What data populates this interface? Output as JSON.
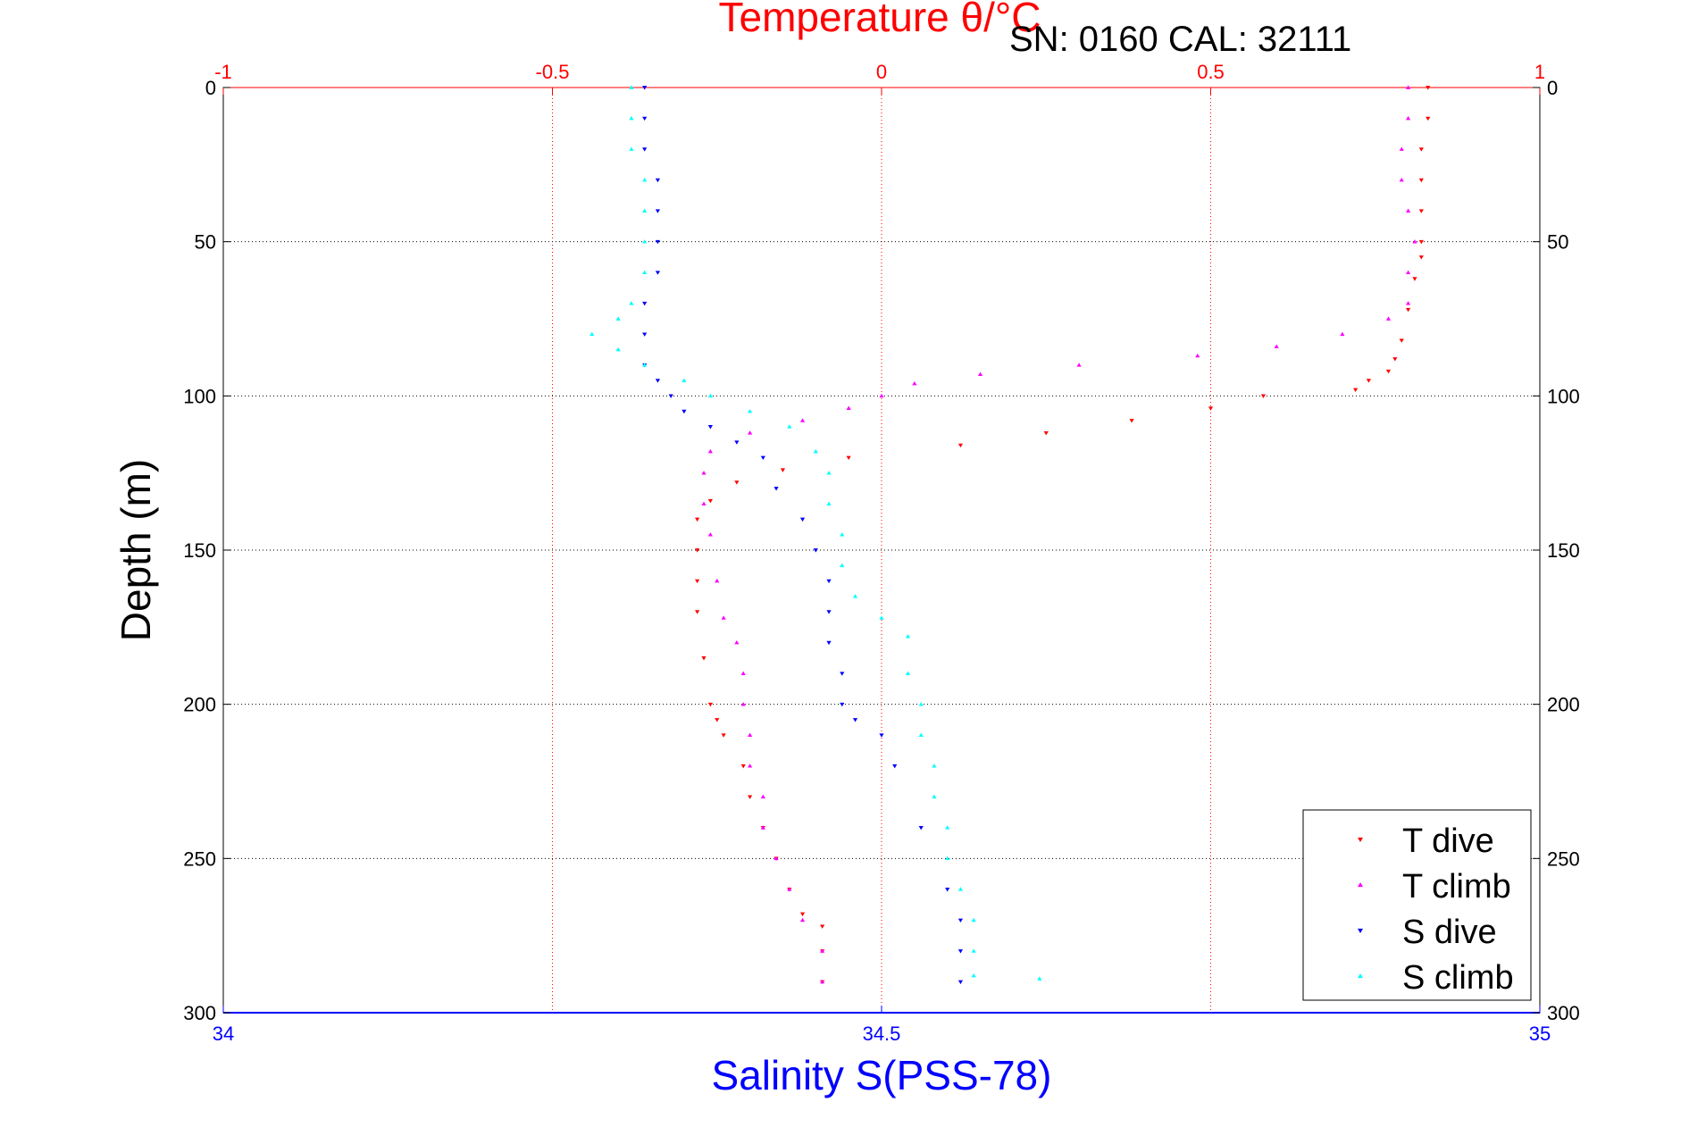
{
  "chart_data": {
    "type": "scatter",
    "info_label": "SN: 0160  CAL: 32111",
    "top_axis": {
      "label": "Temperature θ/°C",
      "range": [
        -1,
        1
      ],
      "ticks": [
        -1,
        -0.5,
        0,
        0.5,
        1
      ],
      "tick_labels": [
        "-1",
        "-0.5",
        "0",
        "0.5",
        "1"
      ],
      "color": "#ff0000"
    },
    "bottom_axis": {
      "label": "Salinity S(PSS-78)",
      "range": [
        34,
        35
      ],
      "ticks": [
        34,
        34.5,
        35
      ],
      "tick_labels": [
        "34",
        "34.5",
        "35"
      ],
      "color": "#0000ff"
    },
    "y_axis": {
      "label": "Depth (m)",
      "range": [
        0,
        300
      ],
      "reversed": true,
      "ticks": [
        0,
        50,
        100,
        150,
        200,
        250,
        300
      ],
      "tick_labels": [
        "0",
        "50",
        "100",
        "150",
        "200",
        "250",
        "300"
      ]
    },
    "grid": true,
    "legend": {
      "position": "bottom-right"
    },
    "series": [
      {
        "name": "T dive",
        "axis": "temperature",
        "marker": "triangle-down",
        "color": "#ff0000",
        "points": [
          [
            0.83,
            0
          ],
          [
            0.83,
            10
          ],
          [
            0.82,
            20
          ],
          [
            0.82,
            30
          ],
          [
            0.82,
            40
          ],
          [
            0.82,
            50
          ],
          [
            0.82,
            55
          ],
          [
            0.81,
            62
          ],
          [
            0.8,
            72
          ],
          [
            0.79,
            82
          ],
          [
            0.78,
            88
          ],
          [
            0.77,
            92
          ],
          [
            0.74,
            95
          ],
          [
            0.72,
            98
          ],
          [
            0.58,
            100
          ],
          [
            0.5,
            104
          ],
          [
            0.38,
            108
          ],
          [
            0.25,
            112
          ],
          [
            0.12,
            116
          ],
          [
            -0.05,
            120
          ],
          [
            -0.15,
            124
          ],
          [
            -0.22,
            128
          ],
          [
            -0.26,
            134
          ],
          [
            -0.28,
            140
          ],
          [
            -0.28,
            150
          ],
          [
            -0.28,
            160
          ],
          [
            -0.28,
            170
          ],
          [
            -0.27,
            185
          ],
          [
            -0.26,
            200
          ],
          [
            -0.25,
            205
          ],
          [
            -0.24,
            210
          ],
          [
            -0.21,
            220
          ],
          [
            -0.2,
            230
          ],
          [
            -0.18,
            240
          ],
          [
            -0.16,
            250
          ],
          [
            -0.14,
            260
          ],
          [
            -0.12,
            268
          ],
          [
            -0.09,
            272
          ],
          [
            -0.09,
            280
          ],
          [
            -0.09,
            290
          ]
        ]
      },
      {
        "name": "T climb",
        "axis": "temperature",
        "marker": "triangle-up",
        "color": "#ff00ff",
        "points": [
          [
            0.8,
            0
          ],
          [
            0.8,
            10
          ],
          [
            0.79,
            20
          ],
          [
            0.79,
            30
          ],
          [
            0.8,
            40
          ],
          [
            0.81,
            50
          ],
          [
            0.8,
            60
          ],
          [
            0.8,
            70
          ],
          [
            0.77,
            75
          ],
          [
            0.7,
            80
          ],
          [
            0.6,
            84
          ],
          [
            0.48,
            87
          ],
          [
            0.3,
            90
          ],
          [
            0.15,
            93
          ],
          [
            0.05,
            96
          ],
          [
            0.0,
            100
          ],
          [
            -0.05,
            104
          ],
          [
            -0.12,
            108
          ],
          [
            -0.2,
            112
          ],
          [
            -0.26,
            118
          ],
          [
            -0.27,
            125
          ],
          [
            -0.27,
            135
          ],
          [
            -0.26,
            145
          ],
          [
            -0.25,
            160
          ],
          [
            -0.24,
            172
          ],
          [
            -0.22,
            180
          ],
          [
            -0.21,
            190
          ],
          [
            -0.21,
            200
          ],
          [
            -0.2,
            210
          ],
          [
            -0.2,
            220
          ],
          [
            -0.18,
            230
          ],
          [
            -0.18,
            240
          ],
          [
            -0.16,
            250
          ],
          [
            -0.14,
            260
          ],
          [
            -0.12,
            270
          ],
          [
            -0.09,
            280
          ],
          [
            -0.09,
            290
          ]
        ]
      },
      {
        "name": "S dive",
        "axis": "salinity",
        "marker": "triangle-down",
        "color": "#0000ff",
        "points": [
          [
            34.32,
            0
          ],
          [
            34.32,
            10
          ],
          [
            34.32,
            20
          ],
          [
            34.33,
            30
          ],
          [
            34.33,
            40
          ],
          [
            34.33,
            50
          ],
          [
            34.33,
            60
          ],
          [
            34.32,
            70
          ],
          [
            34.32,
            80
          ],
          [
            34.32,
            90
          ],
          [
            34.33,
            95
          ],
          [
            34.34,
            100
          ],
          [
            34.35,
            105
          ],
          [
            34.37,
            110
          ],
          [
            34.39,
            115
          ],
          [
            34.41,
            120
          ],
          [
            34.42,
            130
          ],
          [
            34.44,
            140
          ],
          [
            34.45,
            150
          ],
          [
            34.46,
            160
          ],
          [
            34.46,
            170
          ],
          [
            34.46,
            180
          ],
          [
            34.47,
            190
          ],
          [
            34.47,
            200
          ],
          [
            34.48,
            205
          ],
          [
            34.5,
            210
          ],
          [
            34.51,
            220
          ],
          [
            34.53,
            240
          ],
          [
            34.55,
            260
          ],
          [
            34.56,
            270
          ],
          [
            34.56,
            280
          ],
          [
            34.56,
            290
          ]
        ]
      },
      {
        "name": "S climb",
        "axis": "salinity",
        "marker": "triangle-up",
        "color": "#00ffff",
        "points": [
          [
            34.31,
            0
          ],
          [
            34.31,
            10
          ],
          [
            34.31,
            20
          ],
          [
            34.32,
            30
          ],
          [
            34.32,
            40
          ],
          [
            34.32,
            50
          ],
          [
            34.32,
            60
          ],
          [
            34.31,
            70
          ],
          [
            34.3,
            75
          ],
          [
            34.28,
            80
          ],
          [
            34.3,
            85
          ],
          [
            34.32,
            90
          ],
          [
            34.35,
            95
          ],
          [
            34.37,
            100
          ],
          [
            34.4,
            105
          ],
          [
            34.43,
            110
          ],
          [
            34.45,
            118
          ],
          [
            34.46,
            125
          ],
          [
            34.46,
            135
          ],
          [
            34.47,
            145
          ],
          [
            34.47,
            155
          ],
          [
            34.48,
            165
          ],
          [
            34.5,
            172
          ],
          [
            34.52,
            178
          ],
          [
            34.52,
            190
          ],
          [
            34.53,
            200
          ],
          [
            34.53,
            210
          ],
          [
            34.54,
            220
          ],
          [
            34.54,
            230
          ],
          [
            34.55,
            240
          ],
          [
            34.55,
            250
          ],
          [
            34.56,
            260
          ],
          [
            34.57,
            270
          ],
          [
            34.57,
            280
          ],
          [
            34.57,
            288
          ],
          [
            34.62,
            289
          ]
        ]
      }
    ]
  }
}
